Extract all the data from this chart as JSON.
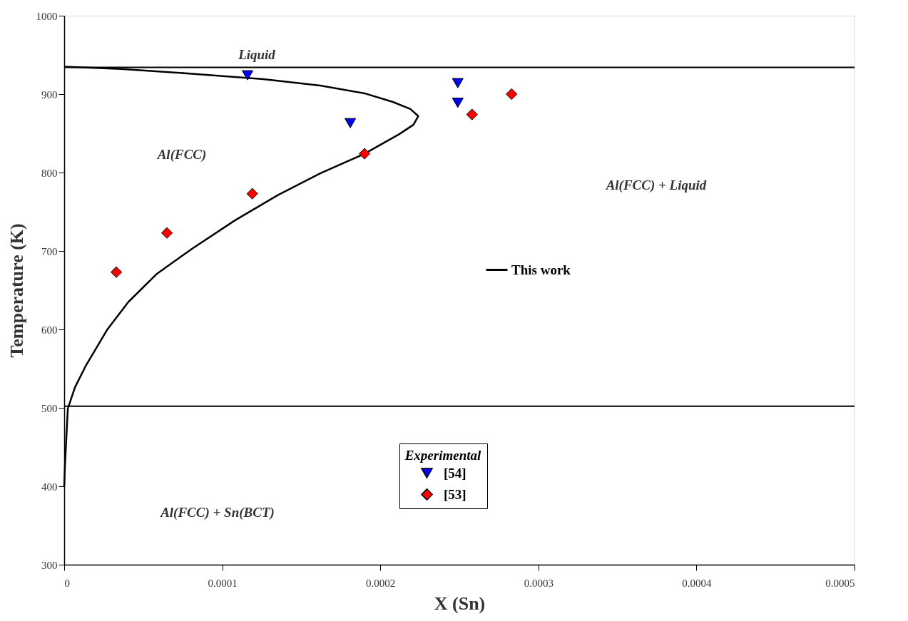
{
  "chart_data": {
    "type": "scatter",
    "xlabel": "X (Sn)",
    "ylabel": "Temperature (K)",
    "legend_title": "Experimental",
    "xlim": [
      0,
      0.0005
    ],
    "xticks": [
      0,
      0.0001,
      0.0002,
      0.0003,
      0.0004,
      0.0005
    ],
    "ylim": [
      300,
      1000
    ],
    "yticks": [
      300,
      400,
      500,
      600,
      700,
      800,
      900,
      1000
    ],
    "grid": false,
    "legend": "right",
    "series": [
      {
        "name": "This work",
        "type": "line",
        "color": "#000000",
        "marker": "none",
        "line_style": "solid",
        "x": [
          0,
          3.6e-05,
          8.1e-05,
          0.000126,
          0.000162,
          0.00019,
          0.000208,
          0.000219,
          0.000224,
          0.000221,
          0.000212,
          0.00019,
          0.000162,
          0.000135,
          0.000108,
          8.1e-05,
          5.87e-05,
          4.06e-05,
          2.7e-05,
          1.35e-05,
          6.8e-06,
          2.3e-06,
          5e-07,
          0
        ],
        "values": [
          935,
          932,
          926,
          919,
          911,
          901,
          890,
          881,
          872,
          861,
          849,
          824,
          799,
          771,
          739,
          703,
          671,
          635,
          599,
          553,
          526,
          499,
          427,
          400
        ]
      },
      {
        "name": "[54]",
        "color": "#0000ff",
        "marker": "triangle",
        "x": [
          0.000116,
          0.000181,
          0.000249,
          0.000249
        ],
        "values": [
          924,
          863,
          914,
          889
        ]
      },
      {
        "name": "[53]",
        "color": "#ff0000",
        "marker": "diamond",
        "x": [
          3.3e-05,
          6.5e-05,
          0.000119,
          0.00019,
          0.000258,
          0.000283
        ],
        "values": [
          673,
          723,
          773,
          824,
          874,
          900
        ]
      }
    ],
    "ref_lines": [
      {
        "axis": "y",
        "value": 934,
        "color": "#000000"
      },
      {
        "axis": "y",
        "value": 502,
        "color": "#000000"
      }
    ],
    "annotations": [
      "Liquid",
      "Al(FCC)",
      "Al(FCC) + Liquid",
      "Al(FCC) + Sn(BCT)"
    ]
  }
}
